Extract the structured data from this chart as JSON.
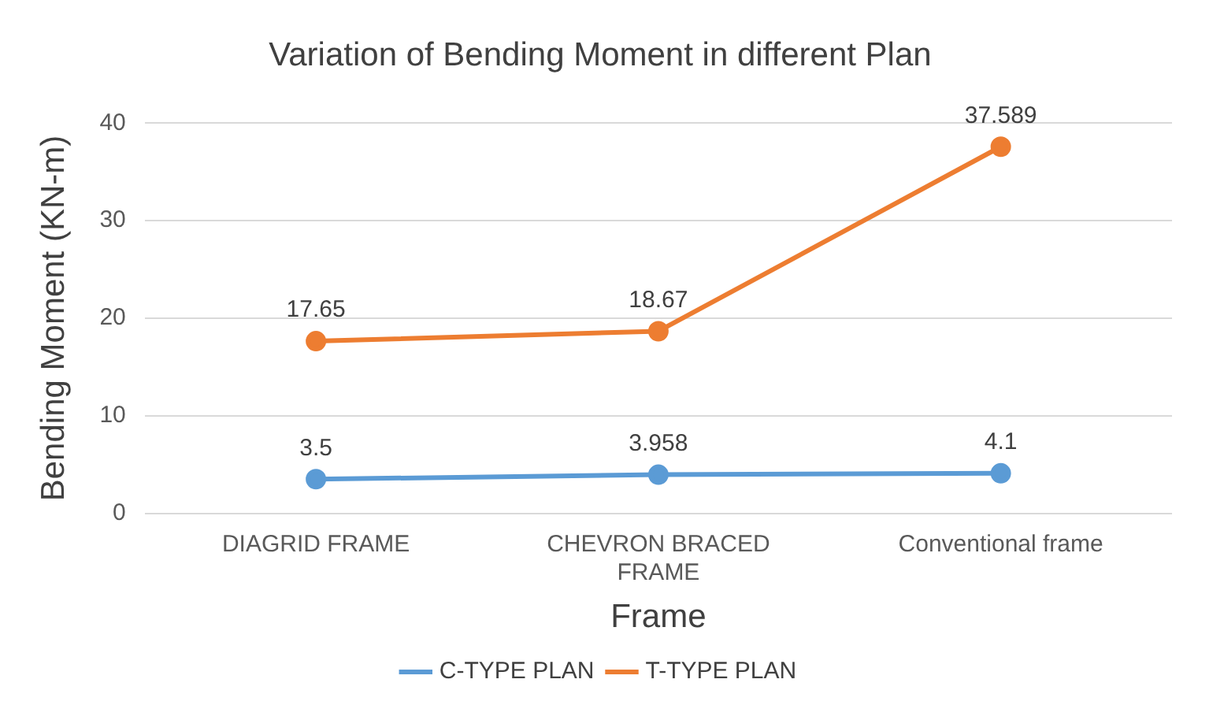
{
  "chart_data": {
    "type": "line",
    "title": "Variation of Bending Moment in different Plan",
    "xlabel": "Frame",
    "ylabel": "Bending Moment (KN-m)",
    "categories": [
      "DIAGRID FRAME",
      "CHEVRON BRACED FRAME",
      "Conventional frame"
    ],
    "series": [
      {
        "name": "C-TYPE PLAN",
        "color": "#5b9bd5",
        "values": [
          3.5,
          3.958,
          4.1
        ]
      },
      {
        "name": "T-TYPE PLAN",
        "color": "#ed7d31",
        "values": [
          17.65,
          18.67,
          37.589
        ]
      }
    ],
    "ylim": [
      0,
      40
    ],
    "yticks": [
      0,
      10,
      20,
      30,
      40
    ],
    "grid": "y",
    "legend": "bottom",
    "marker": "circle",
    "line_style": "solid",
    "data_labels": true
  }
}
